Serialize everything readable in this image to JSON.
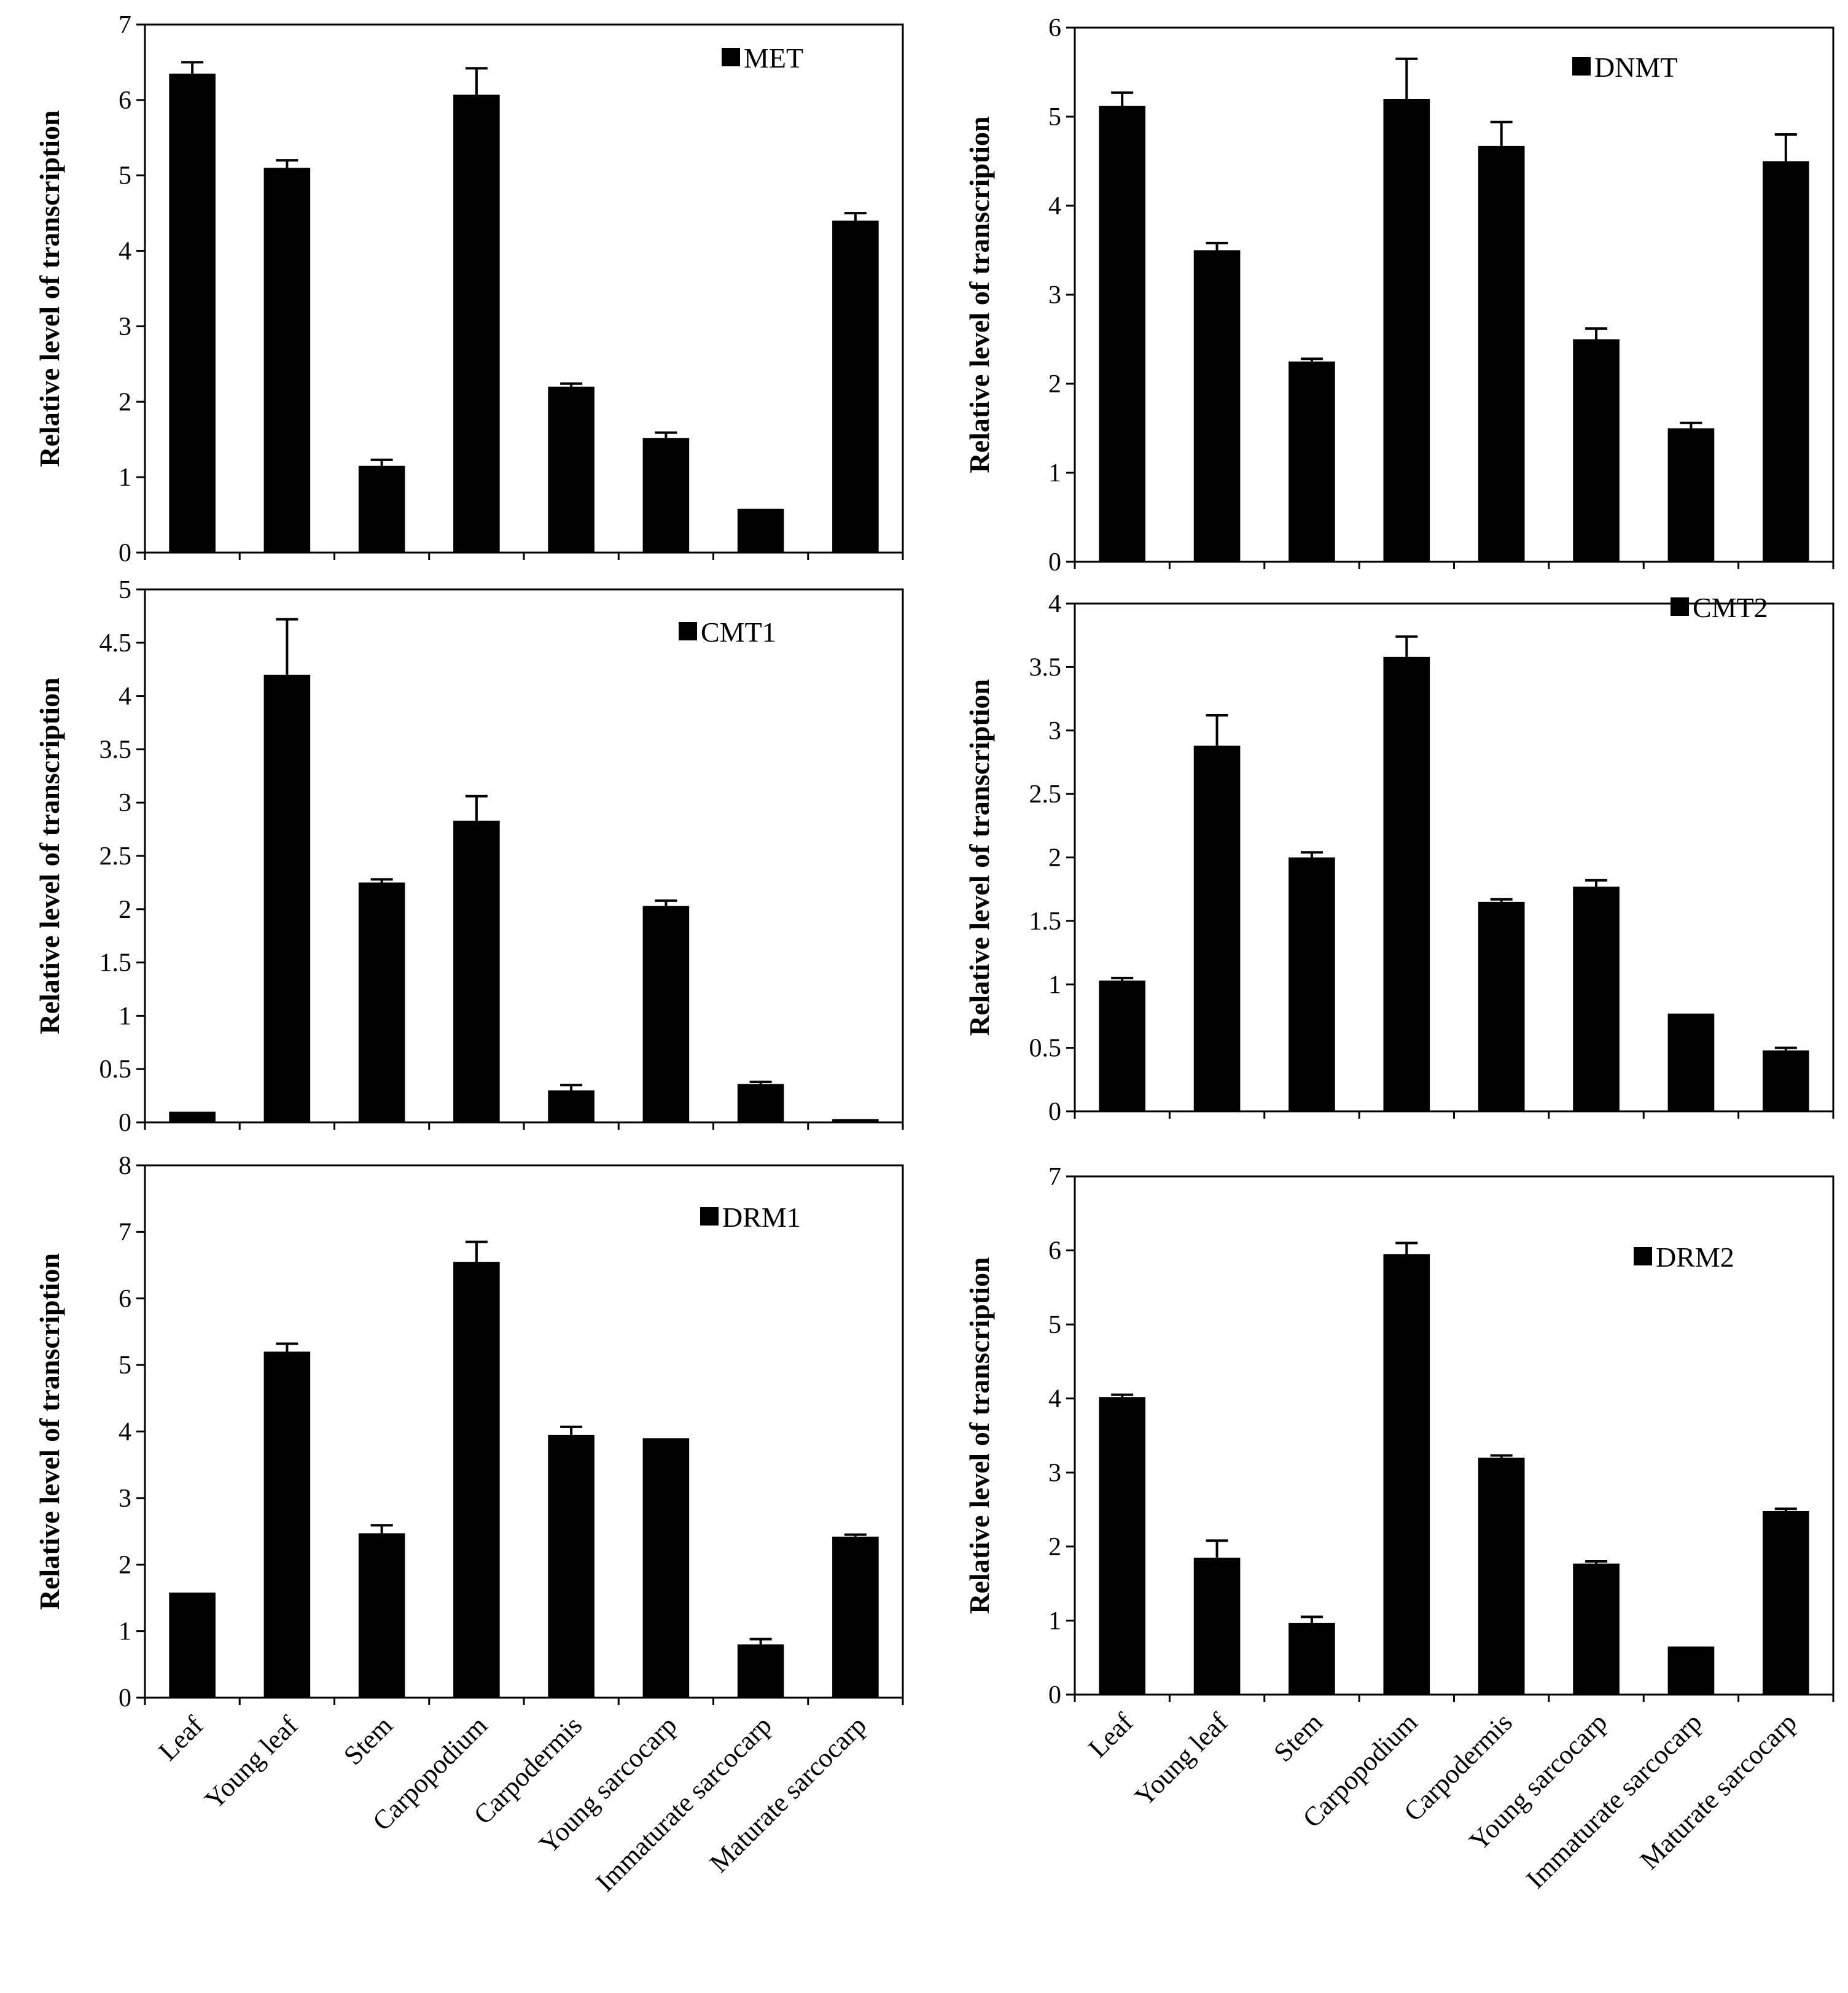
{
  "colors": {
    "bar": "#000000",
    "frame": "#000000",
    "background": "#ffffff"
  },
  "chart_data": [
    {
      "type": "bar",
      "title": "",
      "legend": "MET",
      "legend_position": "top-right",
      "ylabel": "Relative level of transcription",
      "ylim": [
        0,
        7
      ],
      "yticks": [
        0,
        1,
        2,
        3,
        4,
        5,
        6,
        7
      ],
      "ytick_labels": [
        "0",
        "1",
        "2",
        "3",
        "4",
        "5",
        "6",
        "7"
      ],
      "categories": [
        "Leaf",
        "Young leaf",
        "Stem",
        "Carpopodium",
        "Carpodermis",
        "Young sarcocarp",
        "Immaturate sarcocarp",
        "Maturate sarcocarp"
      ],
      "values": [
        6.35,
        5.1,
        1.15,
        6.07,
        2.2,
        1.52,
        0.58,
        4.4
      ],
      "errors": [
        0.15,
        0.1,
        0.08,
        0.35,
        0.04,
        0.07,
        0.0,
        0.1
      ]
    },
    {
      "type": "bar",
      "title": "",
      "legend": "DNMT",
      "legend_position": "top-right",
      "ylabel": "Relative level of transcription",
      "ylim": [
        0,
        6
      ],
      "yticks": [
        0,
        1,
        2,
        3,
        4,
        5,
        6
      ],
      "ytick_labels": [
        "0",
        "1",
        "2",
        "3",
        "4",
        "5",
        "6"
      ],
      "categories": [
        "Leaf",
        "Young leaf",
        "Stem",
        "Carpopodium",
        "Carpodermis",
        "Young sarcocarp",
        "Immaturate sarcocarp",
        "Maturate sarcocarp"
      ],
      "values": [
        5.12,
        3.5,
        2.25,
        5.2,
        4.67,
        2.5,
        1.5,
        4.5
      ],
      "errors": [
        0.15,
        0.08,
        0.03,
        0.45,
        0.27,
        0.12,
        0.06,
        0.3
      ]
    },
    {
      "type": "bar",
      "title": "",
      "legend": "CMT1",
      "legend_position": "top-right",
      "ylabel": "Relative level of transcription",
      "ylim": [
        0,
        5
      ],
      "yticks": [
        0,
        0.5,
        1,
        1.5,
        2,
        2.5,
        3,
        3.5,
        4,
        4.5,
        5
      ],
      "ytick_labels": [
        "0",
        "0.5",
        "1",
        "1.5",
        "2",
        "2.5",
        "3",
        "3.5",
        "4",
        "4.5",
        "5"
      ],
      "categories": [
        "Leaf",
        "Young leaf",
        "Stem",
        "Carpopodium",
        "Carpodermis",
        "Young sarcocarp",
        "Immaturate sarcocarp",
        "Maturate sarcocarp"
      ],
      "values": [
        0.1,
        4.2,
        2.25,
        2.83,
        0.3,
        2.03,
        0.36,
        0.03
      ],
      "errors": [
        0.0,
        0.52,
        0.03,
        0.23,
        0.05,
        0.05,
        0.02,
        0.0
      ]
    },
    {
      "type": "bar",
      "title": "",
      "legend": "CMT2",
      "legend_position": "top-right",
      "ylabel": "Relative level of transcription",
      "ylim": [
        0,
        4
      ],
      "yticks": [
        0,
        0.5,
        1,
        1.5,
        2,
        2.5,
        3,
        3.5,
        4
      ],
      "ytick_labels": [
        "0",
        "0.5",
        "1",
        "1.5",
        "2",
        "2.5",
        "3",
        "3.5",
        "4"
      ],
      "categories": [
        "Leaf",
        "Young leaf",
        "Stem",
        "Carpopodium",
        "Carpodermis",
        "Young sarcocarp",
        "Immaturate sarcocarp",
        "Maturate sarcocarp"
      ],
      "values": [
        1.03,
        2.88,
        2.0,
        3.58,
        1.65,
        1.77,
        0.77,
        0.48
      ],
      "errors": [
        0.02,
        0.24,
        0.04,
        0.16,
        0.02,
        0.05,
        0.0,
        0.02
      ]
    },
    {
      "type": "bar",
      "title": "",
      "legend": "DRM1",
      "legend_position": "top-right",
      "ylabel": "Relative level of transcription",
      "ylim": [
        0,
        8
      ],
      "yticks": [
        0,
        1,
        2,
        3,
        4,
        5,
        6,
        7,
        8
      ],
      "ytick_labels": [
        "0",
        "1",
        "2",
        "3",
        "4",
        "5",
        "6",
        "7",
        "8"
      ],
      "categories": [
        "Leaf",
        "Young leaf",
        "Stem",
        "Carpopodium",
        "Carpodermis",
        "Young sarcocarp",
        "Immaturate sarcocarp",
        "Maturate sarcocarp"
      ],
      "values": [
        1.58,
        5.2,
        2.47,
        6.55,
        3.95,
        3.9,
        0.8,
        2.42
      ],
      "errors": [
        0.0,
        0.12,
        0.12,
        0.3,
        0.12,
        0.0,
        0.08,
        0.03
      ]
    },
    {
      "type": "bar",
      "title": "",
      "legend": "DRM2",
      "legend_position": "top-right",
      "ylabel": "Relative level of transcription",
      "ylim": [
        0,
        7
      ],
      "yticks": [
        0,
        1,
        2,
        3,
        4,
        5,
        6,
        7
      ],
      "ytick_labels": [
        "0",
        "1",
        "2",
        "3",
        "4",
        "5",
        "6",
        "7"
      ],
      "categories": [
        "Leaf",
        "Young leaf",
        "Stem",
        "Carpopodium",
        "Carpodermis",
        "Young sarcocarp",
        "Immaturate sarcocarp",
        "Maturate sarcocarp"
      ],
      "values": [
        4.02,
        1.85,
        0.97,
        5.95,
        3.2,
        1.77,
        0.65,
        2.48
      ],
      "errors": [
        0.03,
        0.23,
        0.08,
        0.15,
        0.03,
        0.03,
        0.0,
        0.03
      ]
    }
  ]
}
